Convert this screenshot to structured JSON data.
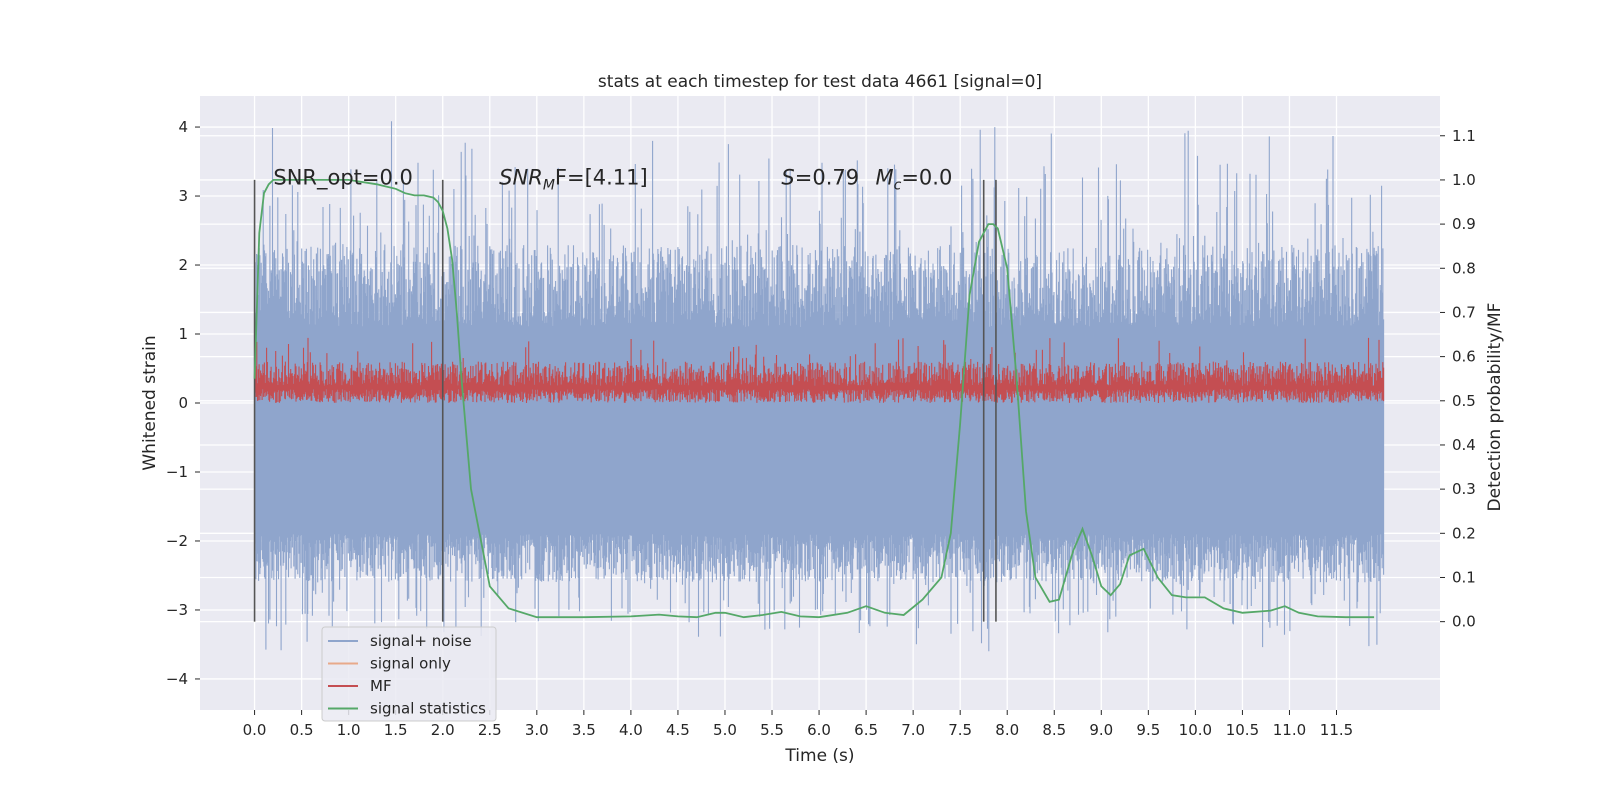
{
  "chart_data": {
    "type": "line",
    "title": "stats at each timestep for test data 4661 [signal=0]",
    "xlabel": "Time (s)",
    "ylabel": "Whitened strain",
    "y2label": "Detection probability/MF",
    "xlim": [
      -0.58,
      12.6
    ],
    "ylim": [
      -4.45,
      4.45
    ],
    "y2lim": [
      -0.2,
      1.19
    ],
    "x_ticks": [
      0.0,
      0.5,
      1.0,
      1.5,
      2.0,
      2.5,
      3.0,
      3.5,
      4.0,
      4.5,
      5.0,
      5.5,
      6.0,
      6.5,
      7.0,
      7.5,
      8.0,
      8.5,
      9.0,
      9.5,
      10.0,
      10.5,
      11.0,
      11.5
    ],
    "x_tick_labels": [
      "0.0",
      "0.5",
      "1.0",
      "1.5",
      "2.0",
      "2.5",
      "3.0",
      "3.5",
      "4.0",
      "4.5",
      "5.0",
      "5.5",
      "6.0",
      "6.5",
      "7.0",
      "7.5",
      "8.0",
      "8.5",
      "9.0",
      "9.5",
      "10.0",
      "10.5",
      "11.0",
      "11.5"
    ],
    "y_ticks": [
      4,
      3,
      2,
      1,
      0,
      -1,
      -2,
      -3,
      -4
    ],
    "y_tick_labels": [
      "4",
      "3",
      "2",
      "1",
      "0",
      "−1",
      "−2",
      "−3",
      "−4"
    ],
    "y2_ticks": [
      1.1,
      1.0,
      0.9,
      0.8,
      0.7,
      0.6,
      0.5,
      0.4,
      0.3,
      0.2,
      0.1,
      0.0
    ],
    "y2_tick_labels": [
      "1.1",
      "1.0",
      "0.9",
      "0.8",
      "0.7",
      "0.6",
      "0.5",
      "0.4",
      "0.3",
      "0.2",
      "0.1",
      "0.0"
    ],
    "grid": true,
    "legend_position": "lower-left",
    "series": [
      {
        "name": "signal+ noise",
        "color": "#8fa5cc",
        "x_range": [
          0.0,
          12.0
        ],
        "envelope": {
          "typical_upper": [
            1.1,
            2.3
          ],
          "peak_upper": [
            3.5,
            4.1
          ],
          "typical_lower": [
            -1.9,
            -2.6
          ],
          "peak_lower": [
            -3.3,
            -3.6
          ]
        }
      },
      {
        "name": "signal only",
        "color": "#e8a98a",
        "values": []
      },
      {
        "name": "MF",
        "color": "#c44e52",
        "x_range": [
          0.0,
          12.0
        ],
        "typical_range": [
          0.0,
          0.6
        ],
        "peak": 0.95
      },
      {
        "name": "signal statistics",
        "color": "#55a868",
        "axis": "right",
        "x": [
          0.0,
          0.05,
          0.1,
          0.15,
          0.2,
          0.3,
          0.5,
          0.8,
          1.0,
          1.3,
          1.5,
          1.6,
          1.7,
          1.8,
          1.9,
          1.95,
          2.0,
          2.05,
          2.1,
          2.15,
          2.2,
          2.3,
          2.5,
          2.7,
          3.0,
          3.5,
          4.0,
          4.3,
          4.5,
          4.7,
          4.9,
          5.0,
          5.2,
          5.4,
          5.6,
          5.8,
          6.0,
          6.3,
          6.5,
          6.7,
          6.9,
          7.1,
          7.3,
          7.4,
          7.5,
          7.6,
          7.7,
          7.8,
          7.85,
          7.9,
          8.0,
          8.1,
          8.2,
          8.3,
          8.45,
          8.55,
          8.7,
          8.8,
          8.9,
          9.0,
          9.1,
          9.2,
          9.3,
          9.45,
          9.6,
          9.75,
          9.9,
          10.1,
          10.3,
          10.5,
          10.8,
          10.95,
          11.1,
          11.3,
          11.6,
          11.9
        ],
        "values": [
          0.55,
          0.88,
          0.97,
          0.99,
          1.0,
          1.0,
          1.0,
          1.0,
          1.0,
          0.99,
          0.98,
          0.97,
          0.965,
          0.965,
          0.96,
          0.95,
          0.93,
          0.89,
          0.82,
          0.7,
          0.55,
          0.3,
          0.08,
          0.03,
          0.01,
          0.01,
          0.012,
          0.016,
          0.012,
          0.01,
          0.02,
          0.02,
          0.01,
          0.015,
          0.022,
          0.012,
          0.01,
          0.02,
          0.035,
          0.02,
          0.015,
          0.05,
          0.1,
          0.2,
          0.45,
          0.74,
          0.86,
          0.9,
          0.9,
          0.89,
          0.8,
          0.55,
          0.25,
          0.1,
          0.045,
          0.05,
          0.16,
          0.21,
          0.15,
          0.08,
          0.06,
          0.085,
          0.15,
          0.165,
          0.1,
          0.06,
          0.055,
          0.055,
          0.03,
          0.02,
          0.025,
          0.035,
          0.02,
          0.012,
          0.01,
          0.01
        ]
      }
    ],
    "vertical_markers": [
      0.0,
      2.0,
      7.75,
      7.88
    ],
    "annotations": [
      {
        "text": "SNR_opt=0.0",
        "x": 0.2,
        "y": 3.27
      },
      {
        "text": "SNR",
        "sub": "M",
        "after": "F=[4.11]",
        "x": 2.6,
        "y": 3.27
      },
      {
        "text": "S",
        "after": "=0.79",
        "x": 5.6,
        "y": 3.27
      },
      {
        "text": "M",
        "sub": "c",
        "after": "=0.0",
        "x": 6.6,
        "y": 3.27
      }
    ]
  }
}
